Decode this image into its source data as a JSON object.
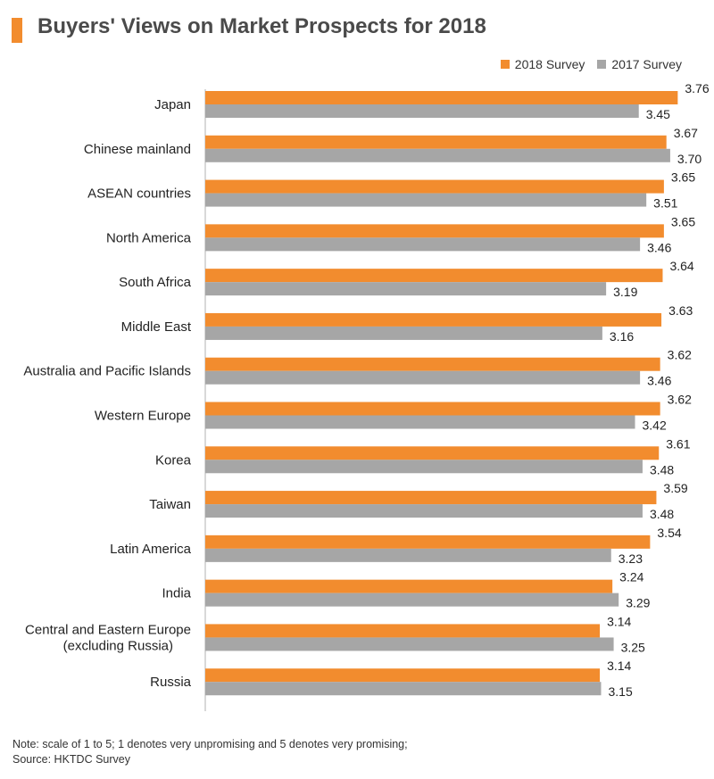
{
  "title": "Buyers' Views on Market Prospects for 2018",
  "colors": {
    "accent": "#f28c2e",
    "s2018": "#f28c2e",
    "s2017": "#a6a6a6"
  },
  "note": {
    "line1": "Note: scale of 1 to 5; 1 denotes very unpromising and 5 denotes very promising;",
    "line2": "Source: HKTDC Survey"
  },
  "chart_data": {
    "type": "bar",
    "orientation": "horizontal",
    "title": "Buyers' Views on Market Prospects for 2018",
    "legend_position": "top-right",
    "grid": false,
    "xlim": [
      0,
      3.8
    ],
    "categories": [
      "Japan",
      "Chinese mainland",
      "ASEAN countries",
      "North America",
      "South Africa",
      "Middle East",
      "Australia and Pacific Islands",
      "Western Europe",
      "Korea",
      "Taiwan",
      "Latin America",
      "India",
      "Central and Eastern Europe|(excluding Russia)",
      "Russia"
    ],
    "series": [
      {
        "name": "2018 Survey",
        "color": "#f28c2e",
        "values": [
          3.76,
          3.67,
          3.65,
          3.65,
          3.64,
          3.63,
          3.62,
          3.62,
          3.61,
          3.59,
          3.54,
          3.24,
          3.14,
          3.14
        ]
      },
      {
        "name": "2017 Survey",
        "color": "#a6a6a6",
        "values": [
          3.45,
          3.7,
          3.51,
          3.46,
          3.19,
          3.16,
          3.46,
          3.42,
          3.48,
          3.48,
          3.23,
          3.29,
          3.25,
          3.15
        ]
      }
    ]
  }
}
